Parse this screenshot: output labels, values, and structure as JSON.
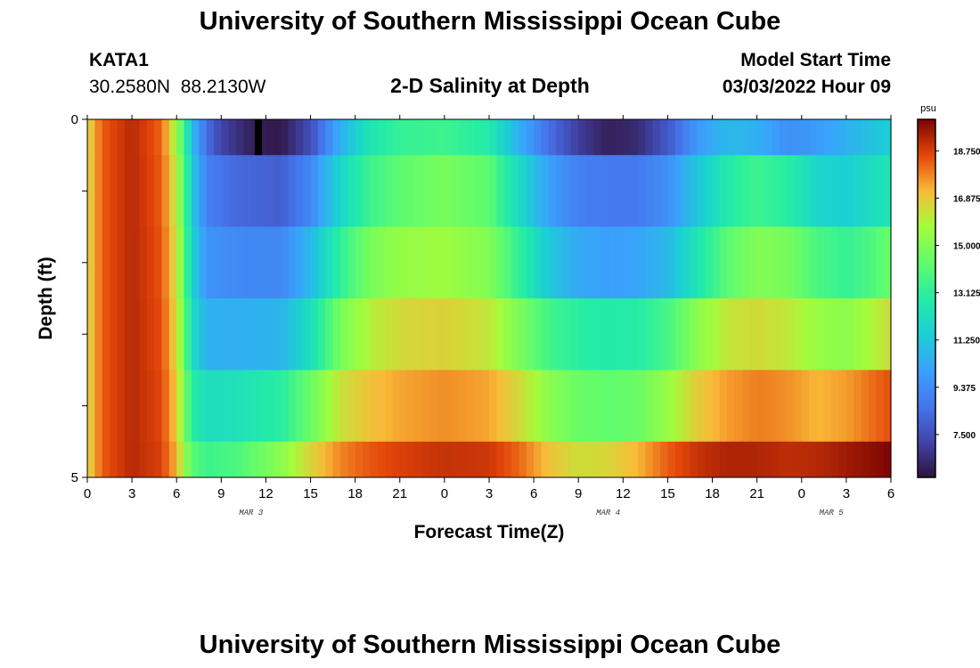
{
  "header": {
    "title": "University of Southern Mississippi Ocean Cube",
    "station_id": "KATA1",
    "station_coords": "30.2580N  88.2130W",
    "chart_title": "2-D Salinity at Depth",
    "start_label": "Model Start Time",
    "start_value": "03/03/2022 Hour 09"
  },
  "footer": {
    "title": "University of Southern Mississippi Ocean Cube"
  },
  "colors": {
    "low": "#2a0f3c",
    "mid_low": "#3a7ef0",
    "mid": "#2ee0a0",
    "mid_high": "#f7b52f",
    "high": "#7a0403",
    "marker": "#000000"
  },
  "chart_data": {
    "type": "heatmap",
    "xlabel": "Forecast Time(Z)",
    "ylabel": "Depth (ft)",
    "x_ticks": [
      "0",
      "3",
      "6",
      "9",
      "12",
      "15",
      "18",
      "21",
      "0",
      "3",
      "6",
      "9",
      "12",
      "15",
      "18",
      "21",
      "0",
      "3",
      "6"
    ],
    "x_range_hours": [
      0,
      54
    ],
    "y_ticks": [
      "0",
      "5"
    ],
    "y_range": [
      0,
      5
    ],
    "date_labels": [
      {
        "hour": 11,
        "label": "MAR 3"
      },
      {
        "hour": 35,
        "label": "MAR 4"
      },
      {
        "hour": 50,
        "label": "MAR 5"
      }
    ],
    "colorbar": {
      "unit": "psu",
      "range": [
        5.8,
        20.0
      ],
      "ticks": [
        "18.750",
        "16.875",
        "15.000",
        "13.125",
        "11.250",
        "9.375",
        "7.500"
      ],
      "tick_values": [
        18.75,
        16.875,
        15.0,
        13.125,
        11.25,
        9.375,
        7.5
      ]
    },
    "layers": [
      {
        "depth_range": [
          0,
          0.5
        ],
        "anchors": [
          [
            0,
            16.5
          ],
          [
            1,
            18.3
          ],
          [
            3,
            19.2
          ],
          [
            5,
            18.2
          ],
          [
            6,
            15.5
          ],
          [
            6.5,
            13.5
          ],
          [
            7,
            11
          ],
          [
            8,
            8.5
          ],
          [
            9,
            7.2
          ],
          [
            11,
            6.2
          ],
          [
            13,
            6.0
          ],
          [
            15,
            7.5
          ],
          [
            17,
            10.5
          ],
          [
            19,
            12.5
          ],
          [
            21,
            13.3
          ],
          [
            24,
            13.5
          ],
          [
            27,
            12.8
          ],
          [
            29,
            10.5
          ],
          [
            31,
            8.5
          ],
          [
            33,
            7.0
          ],
          [
            35,
            6.2
          ],
          [
            37,
            6.5
          ],
          [
            39,
            7.8
          ],
          [
            41,
            9.8
          ],
          [
            43,
            10.8
          ],
          [
            45,
            10.5
          ],
          [
            47,
            9.5
          ],
          [
            49,
            9.8
          ],
          [
            51,
            10.5
          ],
          [
            53,
            11.2
          ],
          [
            54,
            11.5
          ]
        ]
      },
      {
        "depth_range": [
          0.5,
          1.5
        ],
        "anchors": [
          [
            0,
            16.5
          ],
          [
            1,
            18.3
          ],
          [
            3,
            19.2
          ],
          [
            5,
            18.3
          ],
          [
            6,
            16
          ],
          [
            6.5,
            14
          ],
          [
            7,
            11.5
          ],
          [
            8,
            9.0
          ],
          [
            10,
            8.3
          ],
          [
            13,
            8.0
          ],
          [
            15,
            9.2
          ],
          [
            17,
            11.8
          ],
          [
            19,
            13.5
          ],
          [
            21,
            14.2
          ],
          [
            24,
            14.8
          ],
          [
            27,
            14.2
          ],
          [
            29,
            12.0
          ],
          [
            31,
            10.0
          ],
          [
            33,
            9.0
          ],
          [
            35,
            8.8
          ],
          [
            37,
            8.8
          ],
          [
            39,
            9.5
          ],
          [
            41,
            11.2
          ],
          [
            43,
            12.8
          ],
          [
            45,
            13.5
          ],
          [
            47,
            13.0
          ],
          [
            49,
            11.8
          ],
          [
            51,
            11.5
          ],
          [
            53,
            12.2
          ],
          [
            54,
            12.6
          ]
        ]
      },
      {
        "depth_range": [
          1.5,
          2.5
        ],
        "anchors": [
          [
            0,
            16.5
          ],
          [
            1,
            18.3
          ],
          [
            3,
            19.2
          ],
          [
            5,
            18.4
          ],
          [
            6,
            16.3
          ],
          [
            6.5,
            14.2
          ],
          [
            7,
            11.8
          ],
          [
            8,
            9.6
          ],
          [
            10,
            9.3
          ],
          [
            13,
            9.2
          ],
          [
            15,
            10.8
          ],
          [
            17,
            13.2
          ],
          [
            19,
            14.8
          ],
          [
            21,
            15.4
          ],
          [
            24,
            15.6
          ],
          [
            27,
            15.0
          ],
          [
            29,
            13.2
          ],
          [
            31,
            11.3
          ],
          [
            33,
            10.3
          ],
          [
            35,
            10.0
          ],
          [
            37,
            10.1
          ],
          [
            39,
            10.8
          ],
          [
            41,
            12.5
          ],
          [
            43,
            14.2
          ],
          [
            45,
            15.0
          ],
          [
            47,
            14.8
          ],
          [
            49,
            13.8
          ],
          [
            51,
            13.3
          ],
          [
            53,
            14.0
          ],
          [
            54,
            14.5
          ]
        ]
      },
      {
        "depth_range": [
          2.5,
          3.5
        ],
        "anchors": [
          [
            0,
            16.5
          ],
          [
            1,
            18.3
          ],
          [
            3,
            19.2
          ],
          [
            5,
            18.5
          ],
          [
            6,
            16.5
          ],
          [
            6.5,
            14.5
          ],
          [
            7,
            12.2
          ],
          [
            8,
            10.5
          ],
          [
            10,
            10.5
          ],
          [
            13,
            10.6
          ],
          [
            15,
            12.2
          ],
          [
            17,
            14.8
          ],
          [
            19,
            16.0
          ],
          [
            21,
            16.5
          ],
          [
            24,
            16.7
          ],
          [
            27,
            16.2
          ],
          [
            29,
            14.9
          ],
          [
            31,
            13.6
          ],
          [
            33,
            13.0
          ],
          [
            35,
            12.8
          ],
          [
            37,
            12.9
          ],
          [
            39,
            13.7
          ],
          [
            41,
            15.2
          ],
          [
            43,
            16.2
          ],
          [
            45,
            16.5
          ],
          [
            47,
            16.2
          ],
          [
            49,
            15.5
          ],
          [
            51,
            15.2
          ],
          [
            53,
            16.0
          ],
          [
            54,
            16.5
          ]
        ]
      },
      {
        "depth_range": [
          3.5,
          4.5
        ],
        "anchors": [
          [
            0,
            16.5
          ],
          [
            1,
            18.3
          ],
          [
            3,
            19.2
          ],
          [
            5,
            18.6
          ],
          [
            6,
            16.8
          ],
          [
            6.5,
            15
          ],
          [
            7,
            13.0
          ],
          [
            8,
            12.2
          ],
          [
            10,
            12.3
          ],
          [
            13,
            13.0
          ],
          [
            15,
            14.5
          ],
          [
            17,
            16.3
          ],
          [
            19,
            17.0
          ],
          [
            21,
            17.4
          ],
          [
            24,
            17.7
          ],
          [
            27,
            17.4
          ],
          [
            29,
            16.5
          ],
          [
            31,
            15.2
          ],
          [
            33,
            14.5
          ],
          [
            35,
            14.3
          ],
          [
            37,
            14.5
          ],
          [
            39,
            15.5
          ],
          [
            41,
            16.8
          ],
          [
            43,
            17.5
          ],
          [
            45,
            17.9
          ],
          [
            47,
            17.7
          ],
          [
            49,
            17.2
          ],
          [
            51,
            17.5
          ],
          [
            53,
            18.2
          ],
          [
            54,
            18.5
          ]
        ]
      },
      {
        "depth_range": [
          4.5,
          5.0
        ],
        "anchors": [
          [
            0,
            16.5
          ],
          [
            1,
            18.3
          ],
          [
            3,
            19.2
          ],
          [
            5,
            18.7
          ],
          [
            6,
            17.2
          ],
          [
            6.5,
            15.5
          ],
          [
            7,
            14.2
          ],
          [
            8,
            13.5
          ],
          [
            10,
            13.8
          ],
          [
            13,
            15.2
          ],
          [
            15,
            16.6
          ],
          [
            17,
            17.8
          ],
          [
            19,
            18.4
          ],
          [
            21,
            18.7
          ],
          [
            24,
            19.0
          ],
          [
            27,
            18.9
          ],
          [
            29,
            18.2
          ],
          [
            31,
            17.0
          ],
          [
            33,
            16.4
          ],
          [
            35,
            16.6
          ],
          [
            37,
            17.2
          ],
          [
            39,
            18.3
          ],
          [
            41,
            19.0
          ],
          [
            43,
            19.3
          ],
          [
            45,
            19.3
          ],
          [
            47,
            19.1
          ],
          [
            49,
            19.2
          ],
          [
            51,
            19.5
          ],
          [
            53,
            19.8
          ],
          [
            54,
            20.0
          ]
        ]
      }
    ],
    "marker": {
      "hour": 11.5,
      "depth_range": [
        0,
        0.5
      ]
    }
  }
}
